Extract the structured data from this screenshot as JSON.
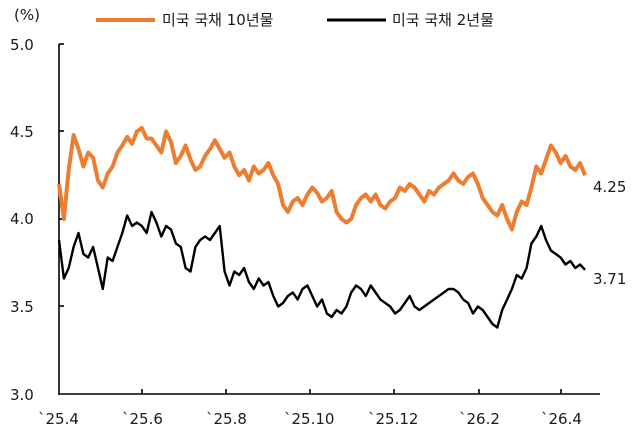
{
  "chart_data": {
    "type": "line",
    "title": "",
    "ylabel": "(%)",
    "xlabel": "",
    "ylim": [
      3.0,
      5.0
    ],
    "yticks": [
      "5.0",
      "4.5",
      "4.0",
      "3.5",
      "3.0"
    ],
    "xticks": [
      "`25.4",
      "`25.6",
      "`25.8",
      "`25.10",
      "`25.12",
      "`26.2",
      "`26.4"
    ],
    "grid": false,
    "legend_position": "top",
    "colors": {
      "us10y": "#ED7D31",
      "us2y": "#000000"
    },
    "end_labels": {
      "us10y": "4.25",
      "us2y": "3.71"
    },
    "series": [
      {
        "name": "미국 국채 10년물",
        "key": "us10y",
        "values": [
          4.2,
          4.0,
          4.28,
          4.48,
          4.4,
          4.3,
          4.38,
          4.35,
          4.22,
          4.18,
          4.26,
          4.3,
          4.38,
          4.42,
          4.47,
          4.43,
          4.5,
          4.52,
          4.46,
          4.46,
          4.42,
          4.38,
          4.5,
          4.44,
          4.32,
          4.36,
          4.42,
          4.34,
          4.28,
          4.3,
          4.36,
          4.4,
          4.45,
          4.4,
          4.35,
          4.38,
          4.3,
          4.25,
          4.28,
          4.22,
          4.3,
          4.26,
          4.28,
          4.32,
          4.25,
          4.2,
          4.08,
          4.04,
          4.1,
          4.12,
          4.08,
          4.14,
          4.18,
          4.15,
          4.1,
          4.12,
          4.16,
          4.04,
          4.0,
          3.98,
          4.0,
          4.08,
          4.12,
          4.14,
          4.1,
          4.14,
          4.08,
          4.06,
          4.1,
          4.12,
          4.18,
          4.16,
          4.2,
          4.18,
          4.14,
          4.1,
          4.16,
          4.14,
          4.18,
          4.2,
          4.22,
          4.26,
          4.22,
          4.2,
          4.24,
          4.26,
          4.2,
          4.12,
          4.08,
          4.04,
          4.02,
          4.08,
          4.0,
          3.94,
          4.04,
          4.1,
          4.08,
          4.18,
          4.3,
          4.26,
          4.34,
          4.42,
          4.38,
          4.32,
          4.36,
          4.3,
          4.28,
          4.32,
          4.25
        ]
      },
      {
        "name": "미국 국채 2년물",
        "key": "us2y",
        "values": [
          3.88,
          3.66,
          3.72,
          3.84,
          3.92,
          3.8,
          3.78,
          3.84,
          3.72,
          3.6,
          3.78,
          3.76,
          3.84,
          3.92,
          4.02,
          3.96,
          3.98,
          3.96,
          3.92,
          4.04,
          3.98,
          3.9,
          3.96,
          3.94,
          3.86,
          3.84,
          3.72,
          3.7,
          3.84,
          3.88,
          3.9,
          3.88,
          3.92,
          3.96,
          3.7,
          3.62,
          3.7,
          3.68,
          3.72,
          3.64,
          3.6,
          3.66,
          3.62,
          3.64,
          3.56,
          3.5,
          3.52,
          3.56,
          3.58,
          3.54,
          3.6,
          3.62,
          3.56,
          3.5,
          3.54,
          3.46,
          3.44,
          3.48,
          3.46,
          3.5,
          3.58,
          3.62,
          3.6,
          3.56,
          3.62,
          3.58,
          3.54,
          3.52,
          3.5,
          3.46,
          3.48,
          3.52,
          3.56,
          3.5,
          3.48,
          3.5,
          3.52,
          3.54,
          3.56,
          3.58,
          3.6,
          3.6,
          3.58,
          3.54,
          3.52,
          3.46,
          3.5,
          3.48,
          3.44,
          3.4,
          3.38,
          3.48,
          3.54,
          3.6,
          3.68,
          3.66,
          3.72,
          3.86,
          3.9,
          3.96,
          3.88,
          3.82,
          3.8,
          3.78,
          3.74,
          3.76,
          3.72,
          3.74,
          3.71
        ]
      }
    ]
  },
  "legend": {
    "items": [
      {
        "label": "미국 국채 10년물"
      },
      {
        "label": "미국 국채 2년물"
      }
    ]
  }
}
